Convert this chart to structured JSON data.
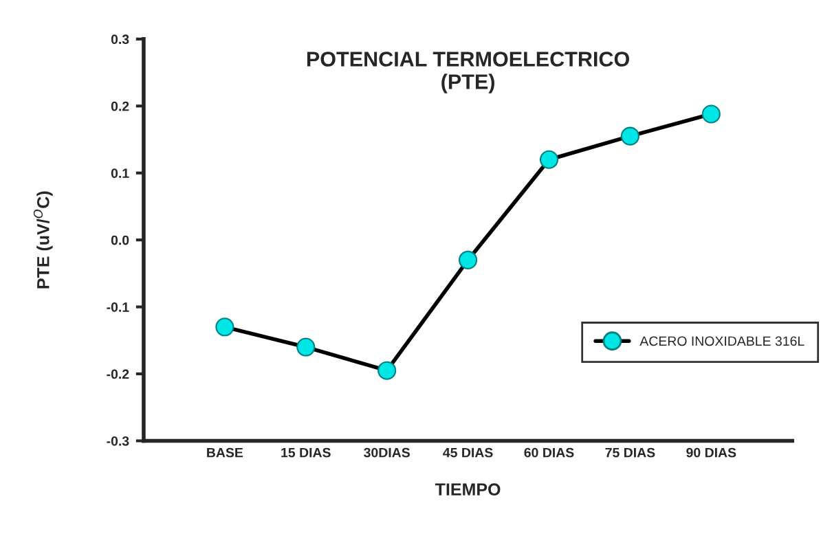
{
  "chart_data": {
    "type": "line",
    "title": "POTENCIAL TERMOELECTRICO\n(PTE)",
    "xlabel": "TIEMPO",
    "ylabel": "PTE (uV/$^{O}$C)",
    "categories": [
      "BASE",
      "15 DIAS",
      "30DIAS",
      "45 DIAS",
      "60 DIAS",
      "75 DIAS",
      "90 DIAS"
    ],
    "series": [
      {
        "name": "ACERO INOXIDABLE 316L",
        "color": "#00e5e5",
        "values": [
          -0.13,
          -0.16,
          -0.195,
          -0.03,
          0.12,
          0.155,
          0.188
        ]
      }
    ],
    "ylim": [
      -0.3,
      0.3
    ],
    "yticks": [
      {
        "value": -0.3,
        "label": "-0.3"
      },
      {
        "value": -0.2,
        "label": "-0.2"
      },
      {
        "value": -0.1,
        "label": "-0.1"
      },
      {
        "value": 0.0,
        "label": "0.0"
      },
      {
        "value": 0.1,
        "label": "0.1"
      },
      {
        "value": 0.2,
        "label": "0.2"
      },
      {
        "value": 0.3,
        "label": "0.3"
      }
    ],
    "marker": "circle",
    "line_style": "solid",
    "legend": "bottom right",
    "grid": false
  }
}
